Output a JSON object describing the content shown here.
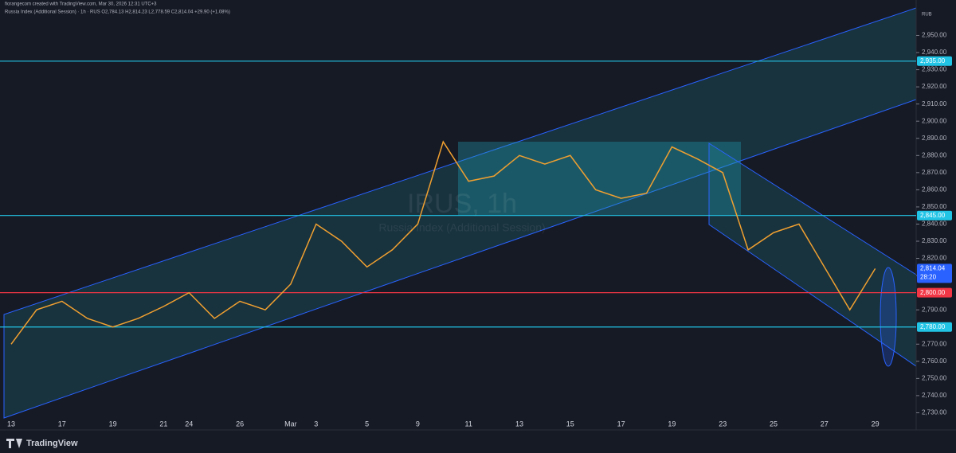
{
  "header": {
    "credit": "fiorangecom created with TradingView.com, Mar 30, 2026 12:31 UTC+3",
    "legend": "Russia Index (Additional Session) · 1h · RUS  O2,784.13 H2,814.23 L2,778.59 C2,814.04 +29.90 (+1.08%)",
    "currency": "RUB"
  },
  "watermark": {
    "symbol": "IRUS, 1h",
    "name": "Russia Index (Additional Session)"
  },
  "footer": {
    "brand": "TradingView"
  },
  "chart_data": {
    "type": "line",
    "color": "#f0a030",
    "categories": [
      "13",
      null,
      "17",
      null,
      "19",
      null,
      "21",
      "24",
      null,
      "26",
      null,
      "Mar",
      "3",
      null,
      "5",
      null,
      "9",
      null,
      "11",
      null,
      "13",
      null,
      "15",
      null,
      "17",
      null,
      "19",
      null,
      "23",
      null,
      "25",
      null,
      "27",
      null,
      "29"
    ],
    "values": [
      2770,
      2790,
      2795,
      2785,
      2780,
      2785,
      2792,
      2800,
      2785,
      2795,
      2790,
      2805,
      2840,
      2830,
      2815,
      2825,
      2840,
      2888,
      2865,
      2868,
      2880,
      2875,
      2880,
      2860,
      2855,
      2858,
      2885,
      2878,
      2870,
      2825,
      2835,
      2840,
      2815,
      2790,
      2814.04
    ],
    "ylim": [
      2720,
      2966
    ],
    "yticks": [
      {
        "value": 2730,
        "label": "2,730.00"
      },
      {
        "value": 2740,
        "label": "2,740.00"
      },
      {
        "value": 2750,
        "label": "2,750.00"
      },
      {
        "value": 2760,
        "label": "2,760.00"
      },
      {
        "value": 2770,
        "label": "2,770.00"
      },
      {
        "value": 2790,
        "label": "2,790.00"
      },
      {
        "value": 2810,
        "label": "2,810.00"
      },
      {
        "value": 2820,
        "label": "2,820.00"
      },
      {
        "value": 2830,
        "label": "2,830.00"
      },
      {
        "value": 2840,
        "label": "2,840.00"
      },
      {
        "value": 2850,
        "label": "2,850.00"
      },
      {
        "value": 2860,
        "label": "2,860.00"
      },
      {
        "value": 2870,
        "label": "2,870.00"
      },
      {
        "value": 2880,
        "label": "2,880.00"
      },
      {
        "value": 2890,
        "label": "2,890.00"
      },
      {
        "value": 2900,
        "label": "2,900.00"
      },
      {
        "value": 2910,
        "label": "2,910.00"
      },
      {
        "value": 2920,
        "label": "2,920.00"
      },
      {
        "value": 2930,
        "label": "2,930.00"
      },
      {
        "value": 2940,
        "label": "2,940.00"
      },
      {
        "value": 2950,
        "label": "2,950.00"
      }
    ],
    "levels": [
      {
        "value": 2935,
        "label": "2,935.00",
        "color": "#22c4e6"
      },
      {
        "value": 2845,
        "label": "2,845.00",
        "color": "#22c4e6"
      },
      {
        "value": 2800,
        "label": "2,800.00",
        "color": "#f23645"
      },
      {
        "value": 2780,
        "label": "2,780.00",
        "color": "#22c4e6"
      }
    ],
    "last_price": {
      "value": 2814.04,
      "label": "2,814.04",
      "countdown": "28:20",
      "color": "#2962ff"
    }
  }
}
